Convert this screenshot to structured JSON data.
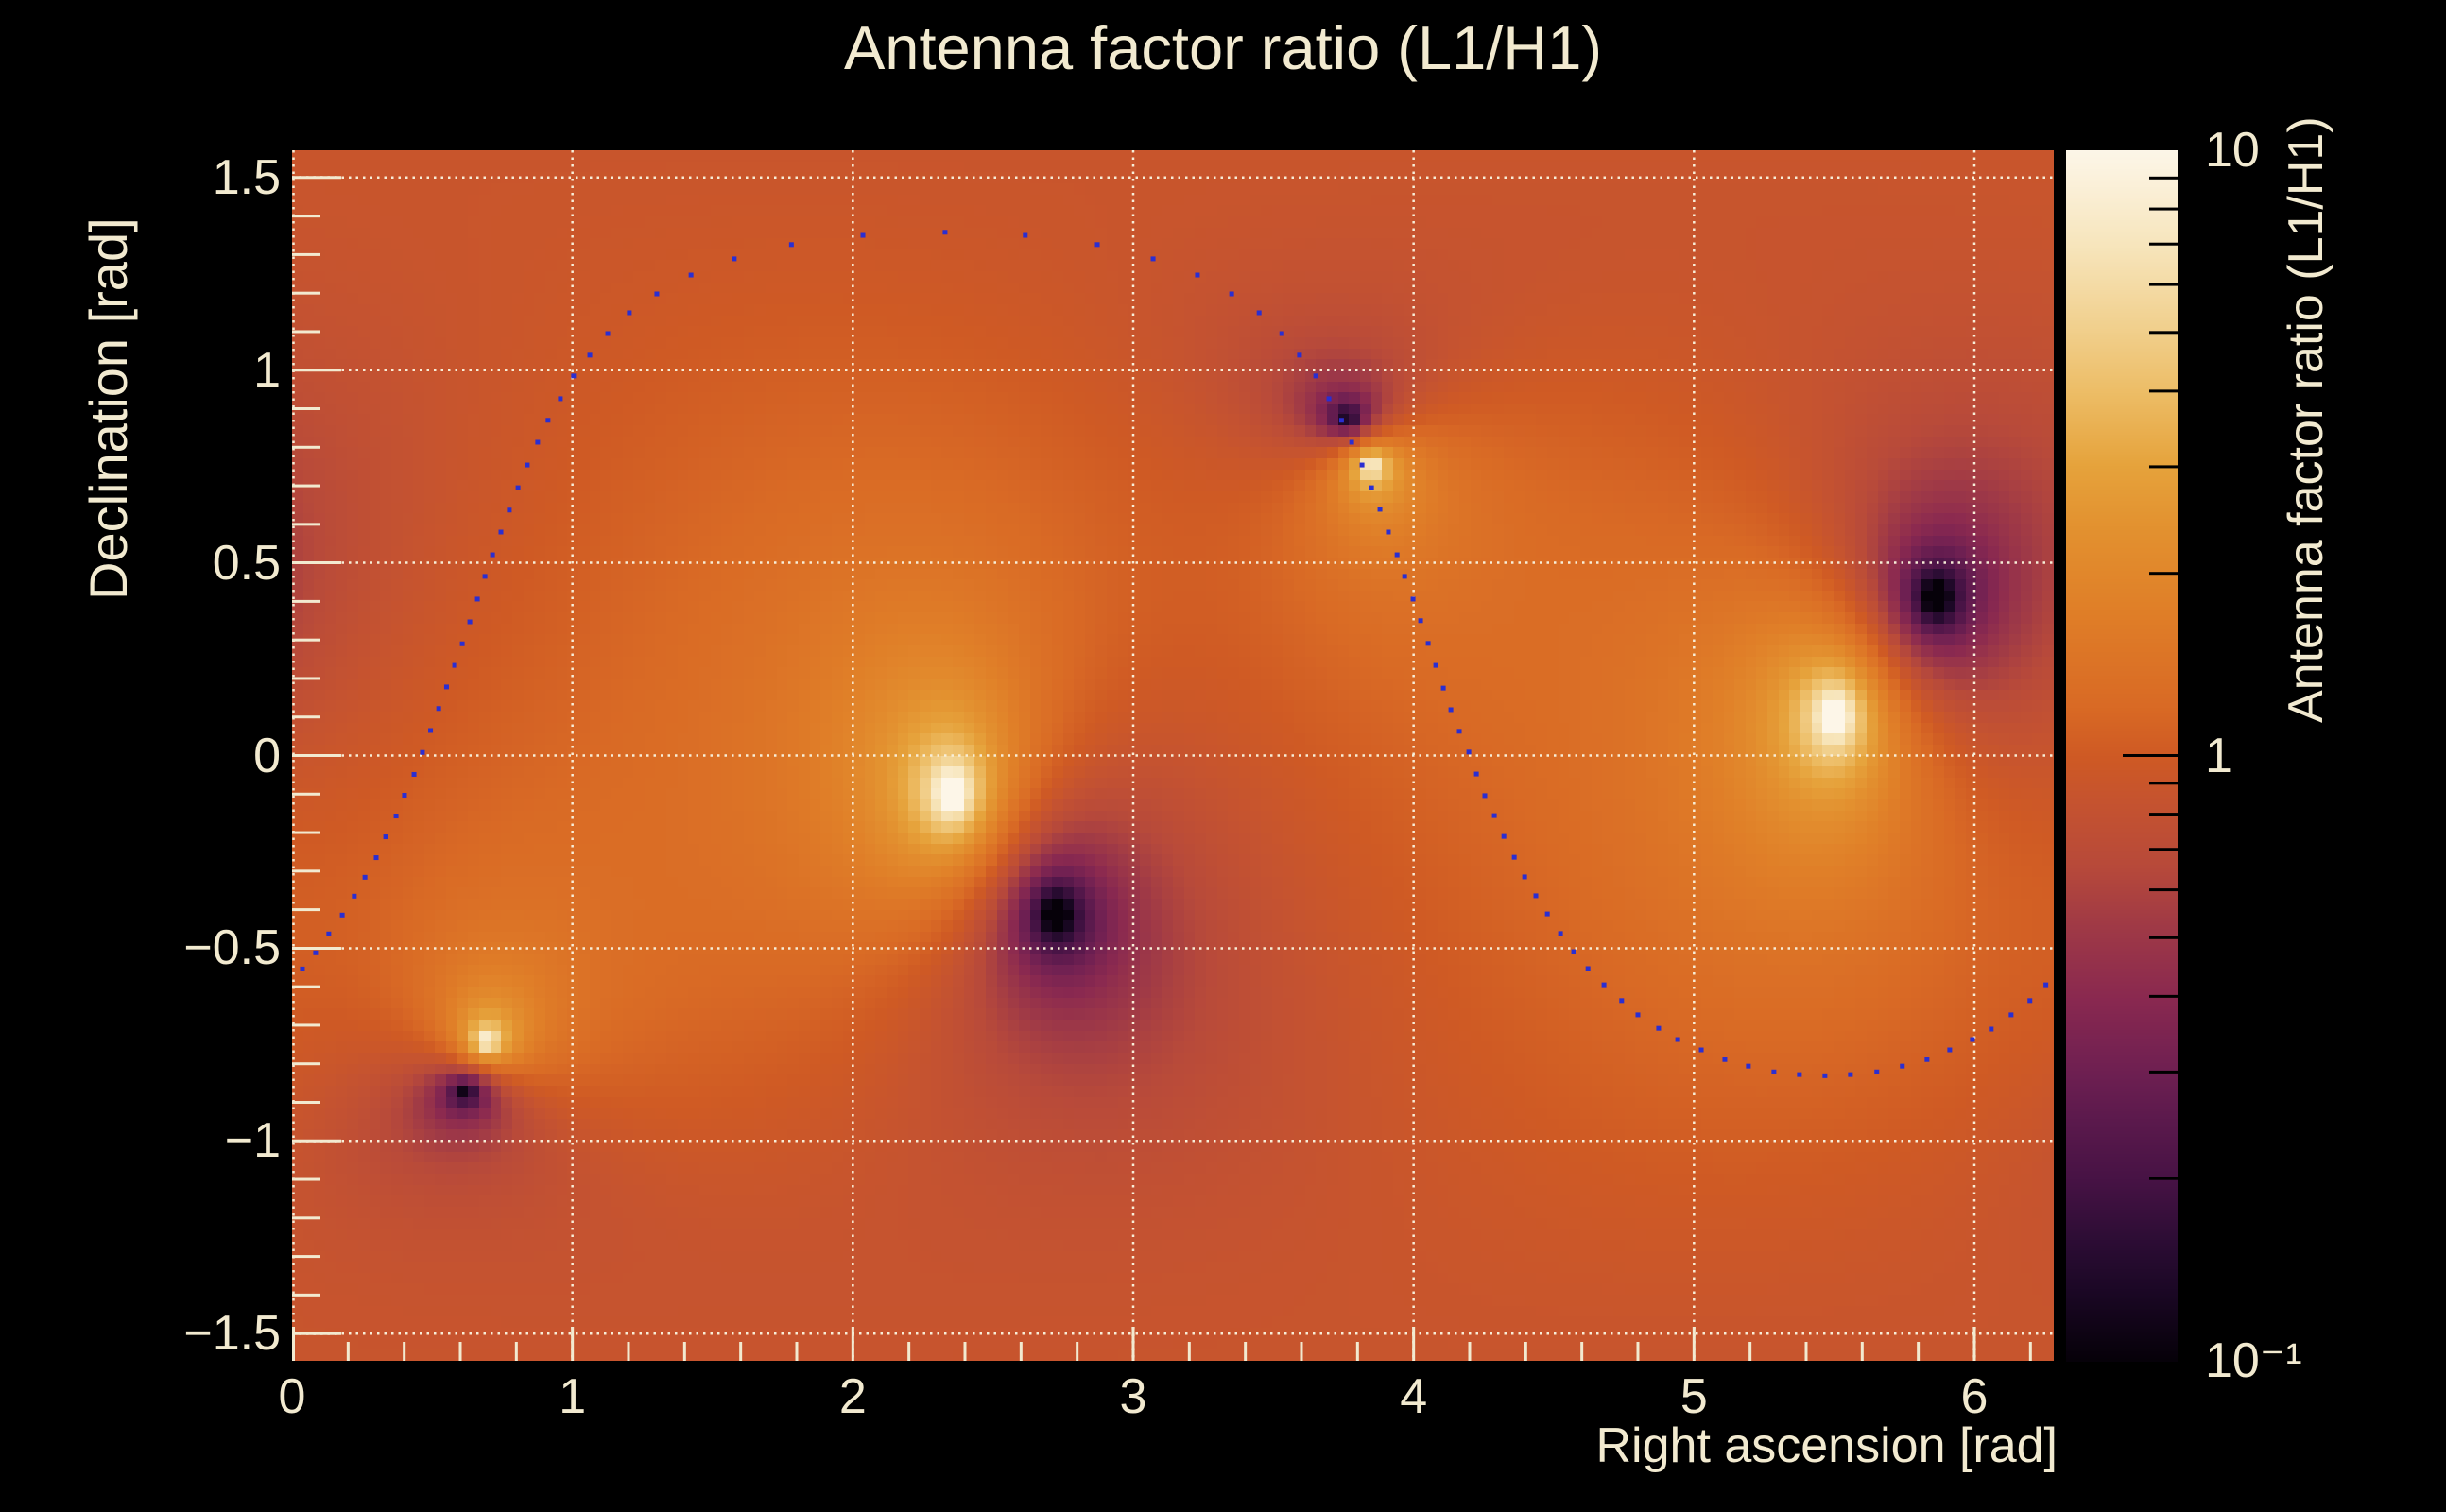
{
  "title": "Antenna factor ratio (L1/H1)",
  "axes": {
    "x": {
      "label": "Right ascension [rad]",
      "tick_values": [
        0,
        1,
        2,
        3,
        4,
        5,
        6
      ],
      "tick_labels": [
        "0",
        "1",
        "2",
        "3",
        "4",
        "5",
        "6"
      ],
      "minor_step": 0.2,
      "range": [
        0,
        6.2832
      ]
    },
    "y": {
      "label": "Declination [rad]",
      "tick_values": [
        1.5,
        1,
        0.5,
        0,
        -0.5,
        -1,
        -1.5
      ],
      "tick_labels": [
        "1.5",
        "1",
        "0.5",
        "0",
        "−0.5",
        "−1",
        "−1.5"
      ],
      "minor_step": 0.1,
      "range": [
        -1.5708,
        1.5708
      ]
    },
    "z": {
      "label": "Antenna factor ratio (L1/H1)",
      "scale": "log",
      "range": [
        0.1,
        10
      ],
      "tick_values": [
        10,
        1,
        0.1
      ],
      "tick_labels": [
        "10",
        "1",
        "10⁻¹"
      ]
    }
  },
  "chart_data": {
    "type": "heatmap",
    "title": "Antenna factor ratio (L1/H1)",
    "xlabel": "Right ascension [rad]",
    "ylabel": "Declination [rad]",
    "zlabel": "Antenna factor ratio (L1/H1)",
    "x_range": [
      0,
      6.2832
    ],
    "y_range": [
      -1.5708,
      1.5708
    ],
    "z_range": [
      0.1,
      10
    ],
    "z_scale": "log",
    "grid": {
      "x_major": [
        0,
        1,
        2,
        3,
        4,
        5,
        6
      ],
      "y_major": [
        -1.5,
        -1,
        -0.5,
        0,
        0.5,
        1,
        1.5
      ],
      "style": "dotted"
    },
    "legend_position": "right-colorbar",
    "bins": {
      "nx": 160,
      "ny": 110
    },
    "field_model": "log10(ratio) = sum(log10 sphdist to L1 zeros) - sum(log10 sphdist to H1 zeros) + 0.02, clipped to [-1,1]",
    "soften_radius": 0.013,
    "h1_zeros_bright_spots": [
      [
        0.694,
        -0.742
      ],
      [
        2.356,
        -0.099
      ],
      [
        3.847,
        0.752
      ],
      [
        5.504,
        0.105
      ]
    ],
    "l1_zeros_dark_spots": [
      [
        0.62,
        -0.872
      ],
      [
        2.723,
        -0.411
      ],
      [
        3.765,
        0.877
      ],
      [
        5.862,
        0.409
      ]
    ],
    "colormap_stops": [
      [
        0.0,
        "#060109"
      ],
      [
        0.06,
        "#1c0826"
      ],
      [
        0.1,
        "#2d0d35"
      ],
      [
        0.15,
        "#471345"
      ],
      [
        0.2,
        "#5c1a4d"
      ],
      [
        0.24,
        "#6f2052"
      ],
      [
        0.3,
        "#8a2950"
      ],
      [
        0.36,
        "#a03a46"
      ],
      [
        0.41,
        "#b84a3a"
      ],
      [
        0.46,
        "#c55330"
      ],
      [
        0.5,
        "#cf5a24"
      ],
      [
        0.54,
        "#d96a25"
      ],
      [
        0.62,
        "#e07f28"
      ],
      [
        0.69,
        "#e39230"
      ],
      [
        0.74,
        "#e6a33c"
      ],
      [
        0.8,
        "#edbd66"
      ],
      [
        0.85,
        "#f1cf8b"
      ],
      [
        0.92,
        "#f7e5bb"
      ],
      [
        0.97,
        "#fbf0d8"
      ],
      [
        1.0,
        "#fdf6e8"
      ]
    ],
    "curve_dots": {
      "marker": "square",
      "color": "#2a2ed2",
      "size": 5,
      "points": [
        [
          0.037,
          -0.554
        ],
        [
          0.084,
          -0.512
        ],
        [
          0.131,
          -0.463
        ],
        [
          0.179,
          -0.414
        ],
        [
          0.222,
          -0.365
        ],
        [
          0.26,
          -0.316
        ],
        [
          0.3,
          -0.265
        ],
        [
          0.334,
          -0.211
        ],
        [
          0.371,
          -0.157
        ],
        [
          0.401,
          -0.103
        ],
        [
          0.435,
          -0.049
        ],
        [
          0.465,
          0.008
        ],
        [
          0.494,
          0.065
        ],
        [
          0.523,
          0.122
        ],
        [
          0.551,
          0.178
        ],
        [
          0.58,
          0.234
        ],
        [
          0.607,
          0.29
        ],
        [
          0.634,
          0.347
        ],
        [
          0.661,
          0.406
        ],
        [
          0.688,
          0.465
        ],
        [
          0.715,
          0.521
        ],
        [
          0.745,
          0.58
        ],
        [
          0.775,
          0.637
        ],
        [
          0.806,
          0.695
        ],
        [
          0.839,
          0.754
        ],
        [
          0.876,
          0.813
        ],
        [
          0.913,
          0.87
        ],
        [
          0.957,
          0.926
        ],
        [
          1.004,
          0.985
        ],
        [
          1.062,
          1.039
        ],
        [
          1.126,
          1.095
        ],
        [
          1.203,
          1.149
        ],
        [
          1.301,
          1.198
        ],
        [
          1.423,
          1.247
        ],
        [
          1.577,
          1.289
        ],
        [
          1.781,
          1.326
        ],
        [
          2.036,
          1.35
        ],
        [
          2.329,
          1.358
        ],
        [
          2.615,
          1.35
        ],
        [
          2.872,
          1.326
        ],
        [
          3.071,
          1.289
        ],
        [
          3.229,
          1.247
        ],
        [
          3.351,
          1.198
        ],
        [
          3.449,
          1.149
        ],
        [
          3.53,
          1.095
        ],
        [
          3.593,
          1.039
        ],
        [
          3.651,
          0.985
        ],
        [
          3.698,
          0.926
        ],
        [
          3.743,
          0.87
        ],
        [
          3.779,
          0.813
        ],
        [
          3.816,
          0.754
        ],
        [
          3.85,
          0.695
        ],
        [
          3.88,
          0.639
        ],
        [
          3.91,
          0.58
        ],
        [
          3.941,
          0.521
        ],
        [
          3.968,
          0.465
        ],
        [
          3.998,
          0.406
        ],
        [
          4.025,
          0.35
        ],
        [
          4.052,
          0.291
        ],
        [
          4.079,
          0.234
        ],
        [
          4.106,
          0.175
        ],
        [
          4.133,
          0.119
        ],
        [
          4.163,
          0.063
        ],
        [
          4.197,
          0.009
        ],
        [
          4.224,
          -0.048
        ],
        [
          4.254,
          -0.104
        ],
        [
          4.288,
          -0.156
        ],
        [
          4.322,
          -0.21
        ],
        [
          4.359,
          -0.264
        ],
        [
          4.396,
          -0.315
        ],
        [
          4.436,
          -0.364
        ],
        [
          4.477,
          -0.411
        ],
        [
          4.524,
          -0.462
        ],
        [
          4.571,
          -0.509
        ],
        [
          4.622,
          -0.553
        ],
        [
          4.679,
          -0.595
        ],
        [
          4.742,
          -0.636
        ],
        [
          4.8,
          -0.673
        ],
        [
          4.874,
          -0.708
        ],
        [
          4.942,
          -0.737
        ],
        [
          5.026,
          -0.764
        ],
        [
          5.11,
          -0.789
        ],
        [
          5.194,
          -0.806
        ],
        [
          5.285,
          -0.821
        ],
        [
          5.376,
          -0.828
        ],
        [
          5.467,
          -0.831
        ],
        [
          5.558,
          -0.828
        ],
        [
          5.652,
          -0.821
        ],
        [
          5.743,
          -0.806
        ],
        [
          5.831,
          -0.789
        ],
        [
          5.912,
          -0.764
        ],
        [
          5.993,
          -0.737
        ],
        [
          6.06,
          -0.71
        ],
        [
          6.131,
          -0.673
        ],
        [
          6.198,
          -0.636
        ],
        [
          6.255,
          -0.595
        ]
      ]
    }
  },
  "colors": {
    "background": "#000000",
    "text": "#f2ead0",
    "grid": "#f8eed8",
    "ticks": "#f2ead0",
    "colorbar_ticks": "#000000",
    "dots": "#2a2ed2"
  }
}
